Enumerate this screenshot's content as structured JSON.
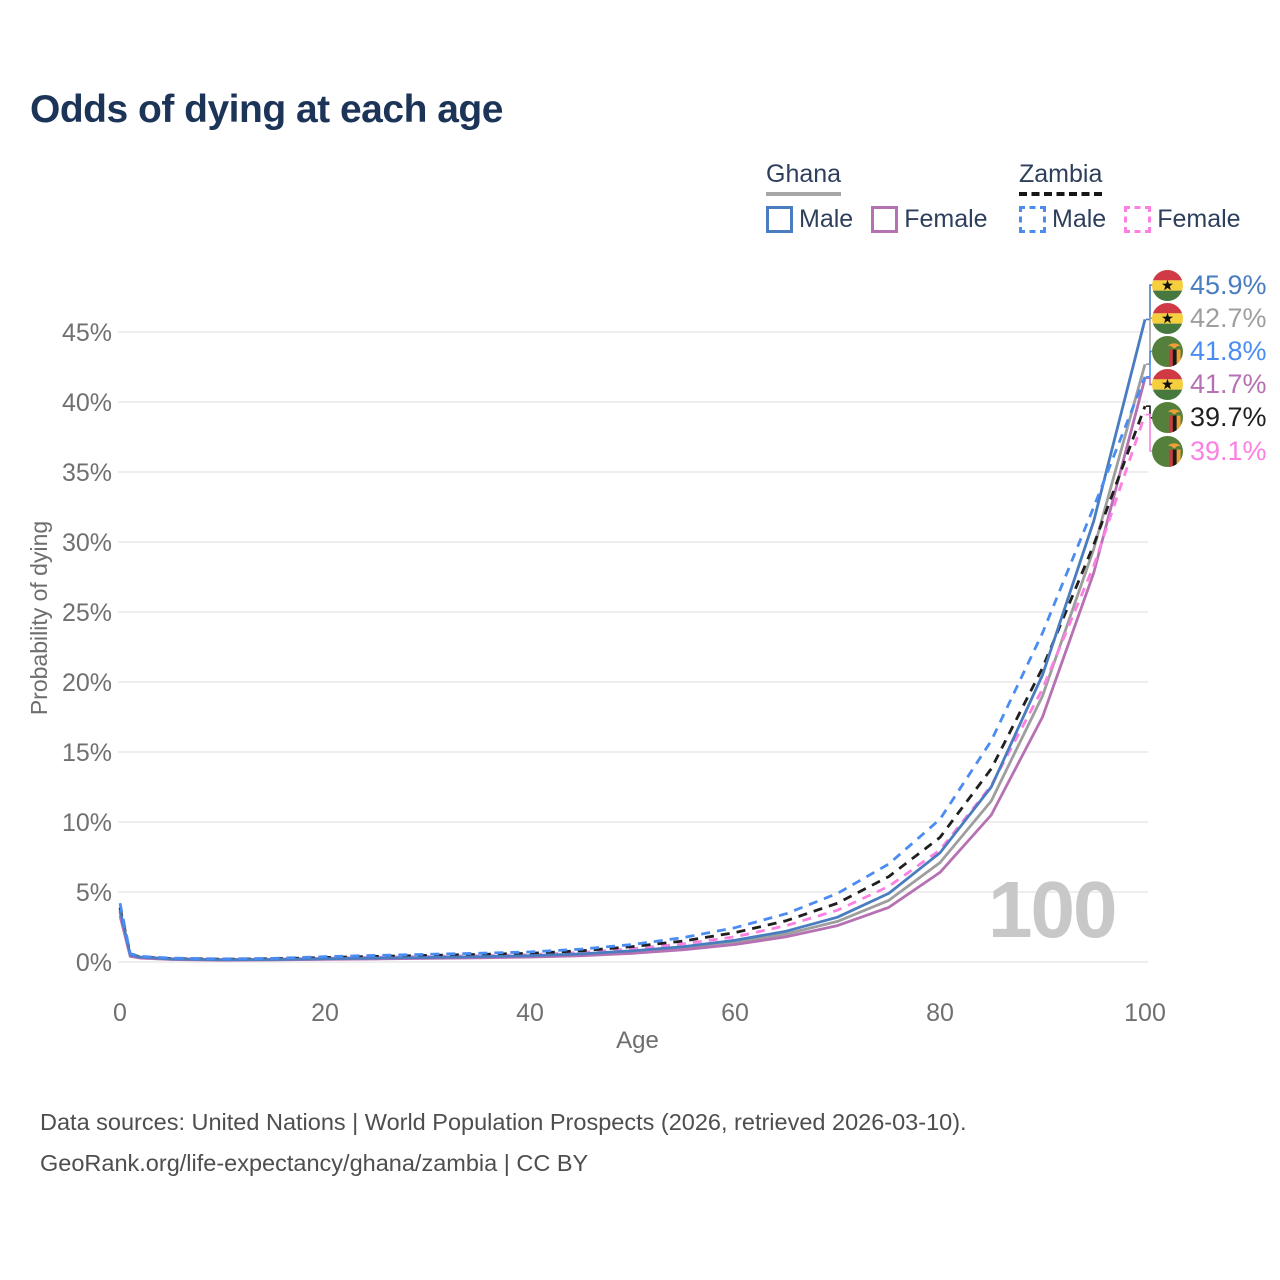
{
  "title": "Odds of dying at each age",
  "watermark": "100",
  "legend": {
    "groups": [
      {
        "label": "Ghana",
        "line_style": "solid",
        "underline_color": "#a6a6a6",
        "items": [
          {
            "label": "Male",
            "color": "#4a7dbf",
            "dashed": false
          },
          {
            "label": "Female",
            "color": "#b671b3",
            "dashed": false
          }
        ]
      },
      {
        "label": "Zambia",
        "line_style": "dashed",
        "underline_color": "#161616",
        "items": [
          {
            "label": "Male",
            "color": "#4b8cf2",
            "dashed": true
          },
          {
            "label": "Female",
            "color": "#fb80e2",
            "dashed": true
          }
        ]
      }
    ]
  },
  "axes": {
    "x": {
      "label": "Age",
      "ticks": [
        "0",
        "20",
        "40",
        "60",
        "80",
        "100"
      ],
      "tick_values": [
        0,
        20,
        40,
        60,
        80,
        100
      ],
      "range": [
        0,
        100
      ]
    },
    "y": {
      "label": "Probability of dying",
      "ticks": [
        "0%",
        "5%",
        "10%",
        "15%",
        "20%",
        "25%",
        "30%",
        "35%",
        "40%",
        "45%"
      ],
      "tick_values": [
        0,
        5,
        10,
        15,
        20,
        25,
        30,
        35,
        40,
        45
      ],
      "range": [
        0,
        47
      ]
    }
  },
  "chart_data": {
    "type": "line",
    "title": "Odds of dying at each age",
    "xlabel": "Age",
    "ylabel": "Probability of dying",
    "y_unit": "%",
    "xlim": [
      0,
      100
    ],
    "ylim": [
      0,
      47
    ],
    "grid": "horizontal",
    "x": [
      0,
      1,
      2,
      5,
      10,
      15,
      20,
      25,
      30,
      35,
      40,
      45,
      50,
      55,
      60,
      65,
      70,
      75,
      80,
      85,
      90,
      95,
      100
    ],
    "series": [
      {
        "id": "ghana-male",
        "name": "Ghana Male",
        "country": "ghana",
        "color": "#4a7dbf",
        "dashed": false,
        "end_label": "45.9%",
        "values": [
          3.7,
          0.5,
          0.35,
          0.22,
          0.16,
          0.18,
          0.23,
          0.28,
          0.32,
          0.38,
          0.45,
          0.58,
          0.8,
          1.1,
          1.55,
          2.2,
          3.2,
          4.9,
          7.8,
          12.5,
          20.5,
          31.5,
          45.9
        ]
      },
      {
        "id": "ghana-total",
        "name": "Ghana (both sexes)",
        "country": "ghana",
        "color": "#9e9e9e",
        "dashed": false,
        "end_label": "42.7%",
        "values": [
          3.5,
          0.45,
          0.32,
          0.2,
          0.15,
          0.16,
          0.21,
          0.25,
          0.29,
          0.34,
          0.4,
          0.52,
          0.72,
          1.0,
          1.4,
          2.0,
          2.9,
          4.4,
          7.1,
          11.5,
          19.0,
          29.5,
          42.7
        ]
      },
      {
        "id": "zambia-male",
        "name": "Zambia Male",
        "country": "zambia",
        "color": "#4b8cf2",
        "dashed": true,
        "end_label": "41.8%",
        "values": [
          4.2,
          0.6,
          0.4,
          0.28,
          0.22,
          0.26,
          0.38,
          0.47,
          0.55,
          0.62,
          0.72,
          0.92,
          1.25,
          1.75,
          2.45,
          3.45,
          4.9,
          7.0,
          10.2,
          15.8,
          23.5,
          32.5,
          41.8
        ]
      },
      {
        "id": "ghana-female",
        "name": "Ghana Female",
        "country": "ghana",
        "color": "#b671b3",
        "dashed": false,
        "end_label": "41.7%",
        "values": [
          3.3,
          0.4,
          0.28,
          0.18,
          0.13,
          0.15,
          0.19,
          0.22,
          0.26,
          0.3,
          0.35,
          0.45,
          0.62,
          0.88,
          1.25,
          1.8,
          2.6,
          3.9,
          6.4,
          10.5,
          17.5,
          27.8,
          41.7
        ]
      },
      {
        "id": "zambia-total",
        "name": "Zambia (both sexes)",
        "country": "zambia",
        "color": "#1f1f1f",
        "dashed": true,
        "end_label": "39.7%",
        "values": [
          3.9,
          0.55,
          0.37,
          0.25,
          0.2,
          0.23,
          0.32,
          0.4,
          0.47,
          0.54,
          0.62,
          0.8,
          1.1,
          1.5,
          2.1,
          2.95,
          4.2,
          6.1,
          8.9,
          13.8,
          21.0,
          29.8,
          39.7
        ]
      },
      {
        "id": "zambia-female",
        "name": "Zambia Female",
        "country": "zambia",
        "color": "#fb80e2",
        "dashed": true,
        "end_label": "39.1%",
        "values": [
          3.6,
          0.5,
          0.34,
          0.23,
          0.18,
          0.2,
          0.27,
          0.34,
          0.4,
          0.45,
          0.52,
          0.68,
          0.95,
          1.3,
          1.8,
          2.6,
          3.7,
          5.4,
          8.0,
          12.6,
          19.5,
          28.3,
          39.1
        ]
      }
    ]
  },
  "flags": {
    "ghana": {
      "red": "#cf3a45",
      "gold": "#f6cf3f",
      "green": "#47783e",
      "star": "#111111"
    },
    "zambia": {
      "green": "#55803c",
      "red": "#cc3b40",
      "black": "#1a1a1a",
      "orange": "#ee9f35"
    }
  },
  "footer": {
    "line1": "Data sources: United Nations | World Population Prospects (2026, retrieved 2026-03-10).",
    "line2": "GeoRank.org/life-expectancy/ghana/zambia | CC BY"
  }
}
